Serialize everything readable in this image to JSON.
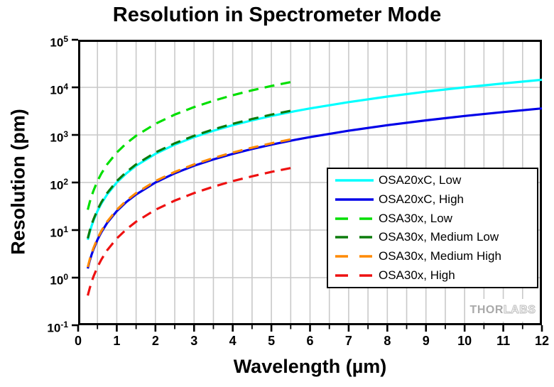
{
  "chart_data": {
    "type": "line",
    "title": "Resolution in Spectrometer Mode",
    "xlabel": "Wavelength (µm)",
    "ylabel": "Resolution (pm)",
    "x_axis": {
      "min": 0,
      "max": 12,
      "major_tick_step": 1,
      "minor_tick_step": 0.5,
      "tick_labels": [
        "0",
        "1",
        "2",
        "3",
        "4",
        "5",
        "6",
        "7",
        "8",
        "9",
        "10",
        "11",
        "12"
      ]
    },
    "y_axis": {
      "scale": "log",
      "base": "10",
      "min": 0.1,
      "max": 100000,
      "tick_exponents": [
        5,
        4,
        3,
        2,
        1,
        0,
        -1
      ]
    },
    "grid": {
      "vertical_step_um": 0.5,
      "horizontal": "decades",
      "color": "#c9c9c9"
    },
    "legend": {
      "position": "middle-right",
      "border": true
    },
    "series": [
      {
        "name": "OSA20xC, Low",
        "color": "#00FFFF",
        "style": "solid",
        "points": [
          [
            0.25,
            6.25
          ],
          [
            0.3,
            9
          ],
          [
            0.35,
            12.3
          ],
          [
            0.4,
            16
          ],
          [
            0.5,
            25
          ],
          [
            0.6,
            36
          ],
          [
            0.75,
            56
          ],
          [
            1,
            100
          ],
          [
            1.25,
            156
          ],
          [
            1.5,
            225
          ],
          [
            2,
            400
          ],
          [
            2.5,
            625
          ],
          [
            3,
            900
          ],
          [
            3.5,
            1225
          ],
          [
            4,
            1600
          ],
          [
            4.5,
            2025
          ],
          [
            5,
            2500
          ],
          [
            5.6,
            3136
          ],
          [
            6,
            3600
          ],
          [
            7,
            4900
          ],
          [
            8,
            6400
          ],
          [
            9,
            8100
          ],
          [
            10,
            10000
          ],
          [
            11,
            12100
          ],
          [
            12,
            14400
          ]
        ]
      },
      {
        "name": "OSA20xC, High",
        "color": "#0000E8",
        "style": "solid",
        "points": [
          [
            0.25,
            1.56
          ],
          [
            0.3,
            2.25
          ],
          [
            0.35,
            3.06
          ],
          [
            0.4,
            4
          ],
          [
            0.5,
            6.25
          ],
          [
            0.6,
            9
          ],
          [
            0.75,
            14.1
          ],
          [
            1,
            25
          ],
          [
            1.25,
            39
          ],
          [
            1.5,
            56
          ],
          [
            2,
            100
          ],
          [
            2.5,
            156
          ],
          [
            3,
            225
          ],
          [
            3.5,
            306
          ],
          [
            4,
            400
          ],
          [
            4.5,
            506
          ],
          [
            5,
            625
          ],
          [
            5.6,
            784
          ],
          [
            6,
            900
          ],
          [
            7,
            1225
          ],
          [
            8,
            1600
          ],
          [
            9,
            2025
          ],
          [
            10,
            2500
          ],
          [
            11,
            3025
          ],
          [
            12,
            3600
          ]
        ]
      },
      {
        "name": "OSA30x, Low",
        "color": "#00DF00",
        "style": "dashed",
        "points": [
          [
            0.25,
            26.7
          ],
          [
            0.3,
            38.4
          ],
          [
            0.35,
            52.3
          ],
          [
            0.4,
            68.3
          ],
          [
            0.5,
            107
          ],
          [
            0.6,
            154
          ],
          [
            0.75,
            240
          ],
          [
            1,
            427
          ],
          [
            1.25,
            667
          ],
          [
            1.5,
            961
          ],
          [
            2,
            1708
          ],
          [
            2.5,
            2669
          ],
          [
            3,
            3843
          ],
          [
            3.5,
            5231
          ],
          [
            4,
            6832
          ],
          [
            4.5,
            8647
          ],
          [
            5,
            10675
          ],
          [
            5.6,
            13390
          ]
        ]
      },
      {
        "name": "OSA30x, Medium Low",
        "color": "#0C7C0C",
        "style": "dashed",
        "points": [
          [
            0.25,
            6.7
          ],
          [
            0.3,
            9.6
          ],
          [
            0.35,
            13.1
          ],
          [
            0.4,
            17.1
          ],
          [
            0.5,
            26.7
          ],
          [
            0.6,
            38.4
          ],
          [
            0.75,
            60
          ],
          [
            1,
            107
          ],
          [
            1.25,
            167
          ],
          [
            1.5,
            240
          ],
          [
            2,
            427
          ],
          [
            2.5,
            667
          ],
          [
            3,
            960
          ],
          [
            3.5,
            1307
          ],
          [
            4,
            1707
          ],
          [
            4.5,
            2161
          ],
          [
            5,
            2668
          ],
          [
            5.6,
            3346
          ]
        ]
      },
      {
        "name": "OSA30x, Medium High",
        "color": "#FF8A00",
        "style": "dashed",
        "points": [
          [
            0.25,
            1.67
          ],
          [
            0.3,
            2.4
          ],
          [
            0.35,
            3.27
          ],
          [
            0.4,
            4.27
          ],
          [
            0.5,
            6.67
          ],
          [
            0.6,
            9.6
          ],
          [
            0.75,
            15
          ],
          [
            1,
            26.7
          ],
          [
            1.25,
            41.7
          ],
          [
            1.5,
            60
          ],
          [
            2,
            107
          ],
          [
            2.5,
            167
          ],
          [
            3,
            240
          ],
          [
            3.5,
            327
          ],
          [
            4,
            427
          ],
          [
            4.5,
            540
          ],
          [
            5,
            667
          ],
          [
            5.6,
            837
          ]
        ]
      },
      {
        "name": "OSA30x, High",
        "color": "#EE1111",
        "style": "dashed",
        "points": [
          [
            0.25,
            0.42
          ],
          [
            0.3,
            0.6
          ],
          [
            0.35,
            0.82
          ],
          [
            0.4,
            1.07
          ],
          [
            0.5,
            1.67
          ],
          [
            0.6,
            2.4
          ],
          [
            0.75,
            3.75
          ],
          [
            1,
            6.67
          ],
          [
            1.25,
            10.4
          ],
          [
            1.5,
            15
          ],
          [
            2,
            26.7
          ],
          [
            2.5,
            41.7
          ],
          [
            3,
            60
          ],
          [
            3.5,
            81.7
          ],
          [
            4,
            107
          ],
          [
            4.5,
            135
          ],
          [
            5,
            167
          ],
          [
            5.6,
            209
          ]
        ]
      }
    ]
  },
  "watermark": {
    "part1": "THOR",
    "part2": "LABS"
  },
  "style": {
    "axis_color": "#000000",
    "grid_color": "#c9c9c9",
    "background": "#ffffff"
  }
}
